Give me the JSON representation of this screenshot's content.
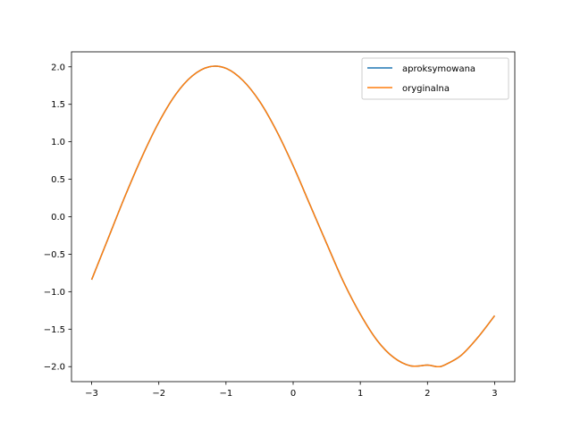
{
  "chart_data": {
    "type": "line",
    "title": "",
    "xlabel": "",
    "ylabel": "",
    "xlim": [
      -3.3,
      3.3
    ],
    "ylim": [
      -2.2,
      2.2
    ],
    "grid": false,
    "legend_position": "top-right",
    "xticks": [
      -3,
      -2,
      -1,
      0,
      1,
      2,
      3
    ],
    "xtick_labels": [
      "−3",
      "−2",
      "−1",
      "0",
      "1",
      "2",
      "3"
    ],
    "yticks": [
      -2.0,
      -1.5,
      -1.0,
      -0.5,
      0.0,
      0.5,
      1.0,
      1.5,
      2.0
    ],
    "ytick_labels": [
      "−2.0",
      "−1.5",
      "−1.0",
      "−0.5",
      "0.0",
      "0.5",
      "1.0",
      "1.5",
      "2.0"
    ],
    "series": [
      {
        "name": "aproksymowana",
        "color": "#1f77b4",
        "x": [
          -3.0,
          -2.75,
          -2.5,
          -2.25,
          -2.0,
          -1.75,
          -1.5,
          -1.25,
          -1.0,
          -0.75,
          -0.5,
          -0.25,
          0.0,
          0.25,
          0.5,
          0.75,
          1.0,
          1.25,
          1.5,
          1.75,
          2.0,
          2.14,
          2.25,
          2.5,
          2.75,
          3.0
        ],
        "y": [
          -0.84,
          -0.28,
          0.28,
          0.8,
          1.26,
          1.63,
          1.88,
          2.0,
          1.98,
          1.82,
          1.54,
          1.15,
          0.68,
          0.16,
          -0.36,
          -0.87,
          -1.3,
          -1.65,
          -1.88,
          -1.99,
          -1.98,
          -2.0,
          -1.98,
          -1.85,
          -1.61,
          -1.32
        ]
      },
      {
        "name": "oryginalna",
        "color": "#ff7f0e",
        "x": [
          -3.0,
          -2.75,
          -2.5,
          -2.25,
          -2.0,
          -1.75,
          -1.5,
          -1.25,
          -1.0,
          -0.75,
          -0.5,
          -0.25,
          0.0,
          0.25,
          0.5,
          0.75,
          1.0,
          1.25,
          1.5,
          1.75,
          2.0,
          2.14,
          2.25,
          2.5,
          2.75,
          3.0
        ],
        "y": [
          -0.84,
          -0.28,
          0.28,
          0.8,
          1.26,
          1.63,
          1.88,
          2.0,
          1.98,
          1.82,
          1.54,
          1.15,
          0.68,
          0.16,
          -0.36,
          -0.87,
          -1.3,
          -1.65,
          -1.88,
          -1.99,
          -1.98,
          -2.0,
          -1.98,
          -1.85,
          -1.61,
          -1.32
        ]
      }
    ]
  }
}
